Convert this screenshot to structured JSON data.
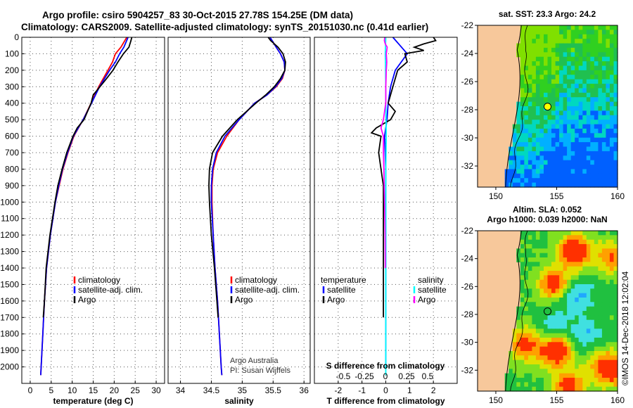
{
  "title": {
    "line1": "Argo profile: csiro 5904257_83 30-Oct-2015 27.78S 154.25E (DM data)",
    "line2": "Climatology: CARS2009. Satellite-adjusted climatology: synTS_20151030.nc (0.41d earlier)"
  },
  "colors": {
    "climatology": "#ff0000",
    "satellite": "#0000ff",
    "argo": "#000000",
    "sat_s": "#00ffff",
    "argo_s": "#ff00ff"
  },
  "depth_axis": {
    "min": 0,
    "max": 2100,
    "ticks": [
      0,
      100,
      200,
      300,
      400,
      500,
      600,
      700,
      800,
      900,
      1000,
      1100,
      1200,
      1300,
      1400,
      1500,
      1600,
      1700,
      1800,
      1900,
      2000
    ]
  },
  "chart_data": [
    {
      "type": "line",
      "id": "temperature",
      "xlabel": "temperature (deg C)",
      "ylabel": "depth",
      "xlim": [
        -2,
        32
      ],
      "ylim": [
        2100,
        0
      ],
      "xticks": [
        0,
        5,
        10,
        15,
        20,
        25,
        30
      ],
      "legend": [
        "climatology",
        "satellite-adj. clim.",
        "Argo"
      ],
      "series": [
        {
          "name": "climatology",
          "color": "#ff0000",
          "depth": [
            0,
            60,
            100,
            150,
            200,
            300,
            400,
            500,
            600,
            700,
            800,
            900,
            1000,
            1200,
            1400,
            1600,
            1700,
            1800,
            1900,
            2000,
            2050
          ],
          "values": [
            23.0,
            21.6,
            20.3,
            19.6,
            18.5,
            16.3,
            14.5,
            12.6,
            10.4,
            9.0,
            7.8,
            6.9,
            6.0,
            4.8,
            3.9,
            3.4,
            3.2,
            3.0,
            2.8,
            2.6,
            2.5
          ]
        },
        {
          "name": "satellite-adj. clim.",
          "color": "#0000ff",
          "depth": [
            0,
            60,
            100,
            150,
            200,
            300,
            400,
            500,
            600,
            700,
            800,
            900,
            1000,
            1200,
            1400,
            1600,
            1700,
            1800,
            1900,
            2000,
            2050
          ],
          "values": [
            23.3,
            22.3,
            21.3,
            20.3,
            18.9,
            16.5,
            14.6,
            12.6,
            10.3,
            8.9,
            7.7,
            6.8,
            6.0,
            4.8,
            3.9,
            3.4,
            3.2,
            3.0,
            2.8,
            2.6,
            2.5
          ]
        },
        {
          "name": "Argo",
          "color": "#000000",
          "depth": [
            0,
            20,
            60,
            100,
            150,
            200,
            250,
            300,
            350,
            400,
            500,
            550,
            600,
            700,
            800,
            900,
            1000,
            1200,
            1400,
            1600,
            1700
          ],
          "values": [
            24.2,
            24.0,
            23.5,
            22.2,
            20.9,
            19.7,
            18.2,
            16.6,
            15.0,
            14.5,
            12.8,
            11.2,
            10.2,
            8.7,
            7.6,
            6.6,
            5.9,
            4.7,
            3.8,
            3.4,
            3.1
          ]
        }
      ]
    },
    {
      "type": "line",
      "id": "salinity",
      "xlabel": "salinity",
      "ylabel": "depth",
      "xlim": [
        33.8,
        36.1
      ],
      "ylim": [
        2100,
        0
      ],
      "xticks": [
        34,
        34.5,
        35,
        35.5,
        36
      ],
      "xtick_labels": [
        "34",
        "34.5",
        "35",
        "35.5",
        "36"
      ],
      "legend": [
        "climatology",
        "satellite-adj. clim.",
        "Argo"
      ],
      "series": [
        {
          "name": "climatology",
          "color": "#ff0000",
          "depth": [
            0,
            60,
            100,
            150,
            200,
            250,
            300,
            350,
            400,
            500,
            600,
            700,
            800,
            900,
            1000,
            1200,
            1400,
            1600,
            1800,
            2000,
            2050
          ],
          "values": [
            35.45,
            35.55,
            35.62,
            35.68,
            35.69,
            35.65,
            35.55,
            35.4,
            35.2,
            34.95,
            34.75,
            34.6,
            34.53,
            34.51,
            34.51,
            34.53,
            34.56,
            34.6,
            34.63,
            34.66,
            34.67
          ]
        },
        {
          "name": "satellite-adj. clim.",
          "color": "#0000ff",
          "depth": [
            0,
            60,
            100,
            150,
            200,
            250,
            300,
            350,
            400,
            500,
            600,
            700,
            800,
            900,
            1000,
            1200,
            1400,
            1600,
            1800,
            2000,
            2050
          ],
          "values": [
            35.45,
            35.55,
            35.62,
            35.68,
            35.69,
            35.64,
            35.54,
            35.4,
            35.2,
            34.95,
            34.72,
            34.58,
            34.52,
            34.5,
            34.5,
            34.53,
            34.56,
            34.6,
            34.63,
            34.66,
            34.67
          ]
        },
        {
          "name": "Argo",
          "color": "#000000",
          "depth": [
            0,
            20,
            60,
            100,
            150,
            200,
            250,
            300,
            350,
            400,
            500,
            550,
            600,
            700,
            800,
            900,
            1000,
            1200,
            1400,
            1600,
            1700
          ],
          "values": [
            35.42,
            35.46,
            35.58,
            35.66,
            35.7,
            35.69,
            35.62,
            35.52,
            35.38,
            35.22,
            34.92,
            34.8,
            34.68,
            34.52,
            34.47,
            34.46,
            34.47,
            34.5,
            34.55,
            34.59,
            34.61
          ]
        }
      ],
      "annotation": [
        "Argo Australia",
        "PI: Susan Wijffels"
      ]
    },
    {
      "type": "line",
      "id": "difference",
      "xlabel": "T difference from climatology",
      "xlabel_top": "S difference from climatology",
      "xlim": [
        -3,
        3
      ],
      "ylim": [
        2100,
        0
      ],
      "xticks": [
        -2,
        -1,
        0,
        1,
        2
      ],
      "s_ticks": [
        -0.5,
        -0.25,
        0,
        0.25,
        0.5
      ],
      "s_tick_labels": [
        "-0.5",
        "-0.25",
        "0",
        "0.25",
        "0.5"
      ],
      "legend_temperature": {
        "title": "temperature",
        "items": [
          "satellite",
          "Argo"
        ]
      },
      "legend_salinity": {
        "title": "salinity",
        "items": [
          "satellite",
          "Argo"
        ]
      },
      "series": [
        {
          "name": "T satellite",
          "color": "#0000ff",
          "depth": [
            0,
            50,
            100,
            200,
            300,
            400,
            500,
            600,
            800,
            1000,
            1500,
            2000
          ],
          "values": [
            0.3,
            0.6,
            0.9,
            0.4,
            0.2,
            0.1,
            0.05,
            -0.05,
            0,
            0,
            0,
            0
          ]
        },
        {
          "name": "T Argo",
          "color": "#000000",
          "depth": [
            0,
            20,
            40,
            60,
            80,
            100,
            150,
            200,
            300,
            400,
            450,
            500,
            550,
            580,
            600,
            700,
            800,
            900,
            1000,
            1200,
            1400,
            1700
          ],
          "values": [
            2.0,
            2.1,
            1.6,
            1.2,
            1.6,
            0.8,
            0.9,
            0.5,
            0.3,
            0.1,
            0.4,
            0.2,
            -0.4,
            -0.6,
            -0.2,
            -0.3,
            -0.2,
            -0.1,
            -0.1,
            -0.1,
            -0.1,
            -0.1
          ]
        },
        {
          "name": "S satellite",
          "color": "#00ffff",
          "depth": [
            0,
            100,
            200,
            300,
            400,
            600,
            800,
            1000,
            1500,
            2000,
            2050
          ],
          "values": [
            0,
            -0.02,
            -0.01,
            0,
            0,
            0.02,
            0,
            0,
            0,
            0,
            0
          ]
        },
        {
          "name": "S Argo",
          "color": "#ff00ff",
          "depth": [
            0,
            20,
            40,
            60,
            100,
            150,
            200,
            300,
            400,
            500,
            550,
            600,
            700,
            800,
            1000,
            1200,
            1400
          ],
          "values": [
            -0.04,
            -0.06,
            -0.02,
            0.06,
            0.02,
            0.04,
            0.02,
            0,
            0,
            -0.1,
            -0.2,
            -0.1,
            -0.1,
            -0.08,
            -0.05,
            -0.03,
            -0.02
          ]
        }
      ]
    },
    {
      "type": "heatmap",
      "id": "sst_map",
      "title": "sat. SST: 23.3 Argo: 24.2",
      "xlim": [
        148.5,
        160
      ],
      "ylim": [
        -33.5,
        -22
      ],
      "xticks": [
        150,
        155,
        160
      ],
      "yticks": [
        -22,
        -24,
        -26,
        -28,
        -30,
        -32
      ],
      "marker": {
        "lon": 154.25,
        "lat": -27.78,
        "fill": "#ffff00"
      }
    },
    {
      "type": "heatmap",
      "id": "sla_map",
      "title": "Altim. SLA: 0.052",
      "subtitle": "Argo h1000: 0.039 h2000: NaN",
      "xlim": [
        148.5,
        160
      ],
      "ylim": [
        -33.5,
        -22
      ],
      "xticks": [
        150,
        155,
        160
      ],
      "yticks": [
        -22,
        -24,
        -26,
        -28,
        -30,
        -32
      ],
      "marker": {
        "lon": 154.25,
        "lat": -27.78,
        "fill": "none"
      }
    }
  ],
  "credit": "©IMOS 14-Dec-2018 12:02:04"
}
